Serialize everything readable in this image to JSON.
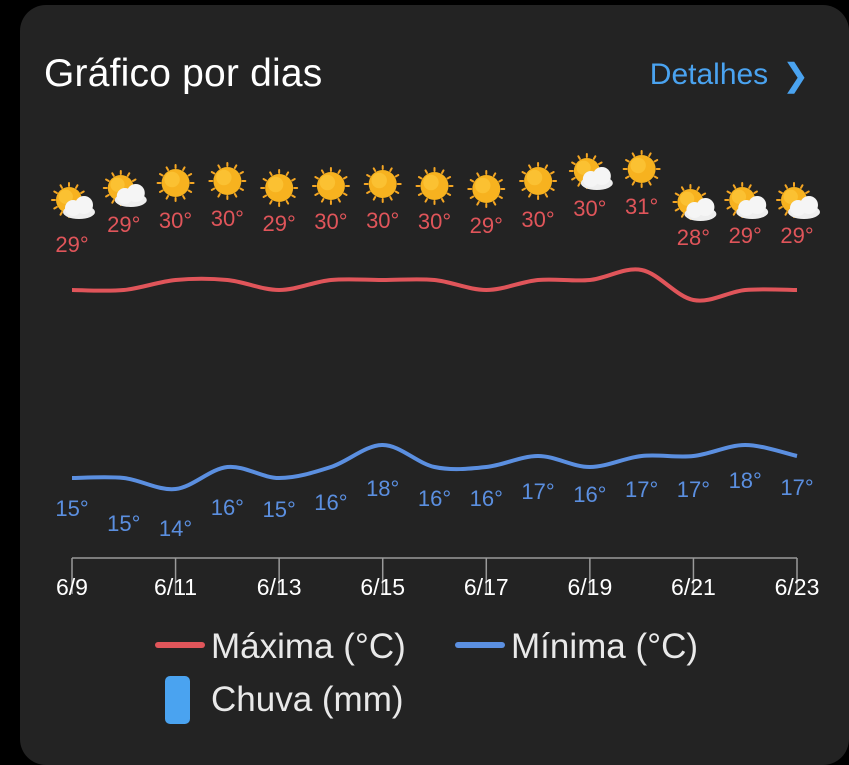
{
  "header": {
    "title": "Gráfico por dias",
    "details_label": "Detalhes",
    "chevron_icon": "chevron-right-icon"
  },
  "colors": {
    "background": "#232323",
    "max_line": "#e0555a",
    "min_line": "#5b8fe0",
    "rain": "#4aa3f0",
    "link": "#4aa3f0"
  },
  "chart_data": {
    "type": "line",
    "x": [
      "6/9",
      "6/10",
      "6/11",
      "6/12",
      "6/13",
      "6/14",
      "6/15",
      "6/16",
      "6/17",
      "6/18",
      "6/19",
      "6/20",
      "6/21",
      "6/22",
      "6/23"
    ],
    "x_tick_labels": [
      "6/9",
      "6/11",
      "6/13",
      "6/15",
      "6/17",
      "6/19",
      "6/21",
      "6/23"
    ],
    "icons": [
      "partly-cloudy-icon",
      "partly-cloudy-icon",
      "sunny-icon",
      "sunny-icon",
      "sunny-icon",
      "sunny-icon",
      "sunny-icon",
      "sunny-icon",
      "sunny-icon",
      "sunny-icon",
      "partly-cloudy-icon",
      "sunny-icon",
      "partly-cloudy-icon",
      "partly-cloudy-icon",
      "partly-cloudy-icon"
    ],
    "series": [
      {
        "name": "Máxima (°C)",
        "values": [
          29,
          29,
          30,
          30,
          29,
          30,
          30,
          30,
          29,
          30,
          30,
          31,
          28,
          29,
          29
        ]
      },
      {
        "name": "Mínima (°C)",
        "values": [
          15,
          15,
          14,
          16,
          15,
          16,
          18,
          16,
          16,
          17,
          16,
          17,
          17,
          18,
          17
        ]
      }
    ],
    "value_labels": {
      "max": [
        "29°",
        "29°",
        "30°",
        "30°",
        "29°",
        "30°",
        "30°",
        "30°",
        "29°",
        "30°",
        "30°",
        "31°",
        "28°",
        "29°",
        "29°"
      ],
      "min": [
        "15°",
        "15°",
        "14°",
        "16°",
        "15°",
        "16°",
        "18°",
        "16°",
        "16°",
        "17°",
        "16°",
        "17°",
        "17°",
        "18°",
        "17°"
      ]
    },
    "legend": [
      {
        "label": "Máxima (°C)",
        "kind": "line",
        "color": "#e0555a"
      },
      {
        "label": "Mínima (°C)",
        "kind": "line",
        "color": "#5b8fe0"
      },
      {
        "label": "Chuva (mm)",
        "kind": "bar",
        "color": "#4aa3f0"
      }
    ],
    "legend_position": "bottom",
    "grid": false
  }
}
